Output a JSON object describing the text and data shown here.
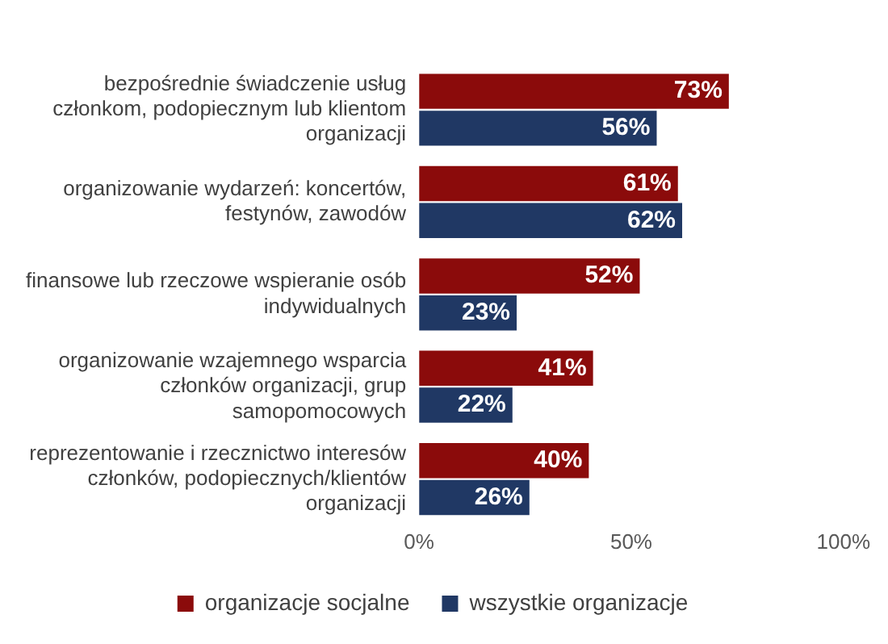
{
  "chart_data": {
    "type": "bar",
    "orientation": "horizontal",
    "categories": [
      "bezpośrednie świadczenie usług członkom, podopiecznym lub klientom organizacji",
      "organizowanie wydarzeń: koncertów, festynów, zawodów",
      "finansowe lub rzeczowe wspieranie osób indywidualnych",
      "organizowanie wzajemnego wsparcia członków organizacji, grup samopomocowych",
      "reprezentowanie i rzecznictwo interesów członków, podopiecznych/klientów organizacji"
    ],
    "series": [
      {
        "name": "organizacje socjalne",
        "color": "#8b0b0b",
        "values": [
          73,
          61,
          52,
          41,
          40
        ]
      },
      {
        "name": "wszystkie organizacje",
        "color": "#203864",
        "values": [
          56,
          62,
          23,
          22,
          26
        ]
      }
    ],
    "xlim": [
      0,
      100
    ],
    "xticks": [
      {
        "value": 0,
        "label": "0%"
      },
      {
        "value": 50,
        "label": "50%"
      },
      {
        "value": 100,
        "label": "100%"
      }
    ],
    "value_labels": [
      [
        "73%",
        "61%",
        "52%",
        "41%",
        "40%"
      ],
      [
        "56%",
        "62%",
        "23%",
        "22%",
        "26%"
      ]
    ],
    "grid": false,
    "legend": "bottom"
  }
}
